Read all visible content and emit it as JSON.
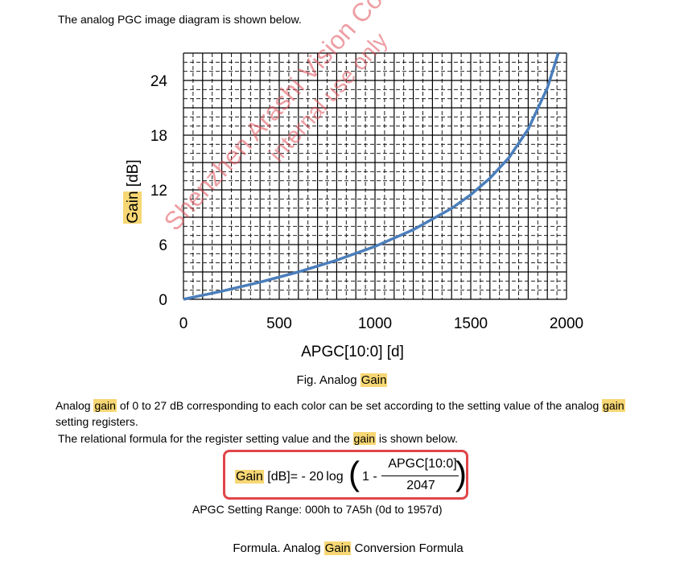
{
  "intro": "The analog PGC image diagram is shown below.",
  "chart_data": {
    "type": "line",
    "xlabel": "APGC[10:0] [d]",
    "ylabel": {
      "highlight": "Gain",
      "rest": " [dB]"
    },
    "xlim": [
      0,
      2000
    ],
    "ylim": [
      0,
      27
    ],
    "xticks": [
      "0",
      "500",
      "1000",
      "1500",
      "2000"
    ],
    "yticks": [
      "0",
      "6",
      "12",
      "18",
      "24"
    ],
    "grid": "on",
    "series": [
      {
        "color": "#4a7ebb",
        "x": [
          0,
          200,
          400,
          600,
          800,
          1000,
          1200,
          1400,
          1500,
          1600,
          1700,
          1800,
          1900,
          1957
        ],
        "y": [
          0,
          0.89,
          1.88,
          3.0,
          4.29,
          5.8,
          7.63,
          9.97,
          11.47,
          13.27,
          15.55,
          18.66,
          23.18,
          27.0
        ]
      }
    ]
  },
  "watermark": {
    "line1": "Shenzhen Arashi Vision Co.,Ltd",
    "line2": "internal use only"
  },
  "fig_caption": {
    "prefix": "Fig. Analog ",
    "highlight": "Gain"
  },
  "para1": {
    "t1": "Analog ",
    "h1": "gain",
    "t2": " of 0 to 27 dB corresponding to each color can be set according to the setting value of the analog ",
    "h2": "gain",
    "t3": "setting registers."
  },
  "para2": {
    "t1": " The relational formula for the register setting value and the ",
    "h1": "gain",
    "t2": " is shown below."
  },
  "formula": {
    "lhs_highlight": "Gain",
    "lhs_rest": " [dB]= - 20 log",
    "one_minus": "1 -",
    "numerator": "APGC[10:0]",
    "denominator": "2047",
    "paren_left": "(",
    "paren_right": ")"
  },
  "range": "APGC Setting Range: 000h to 7A5h (0d to 1957d)",
  "formula_caption": {
    "prefix": "Formula. Analog ",
    "highlight": "Gain",
    "suffix": " Conversion Formula"
  },
  "colors": {
    "highlight": "#f7d774",
    "box": "#e0454a",
    "curve": "#4a7ebb",
    "watermark": "#e0505a"
  }
}
